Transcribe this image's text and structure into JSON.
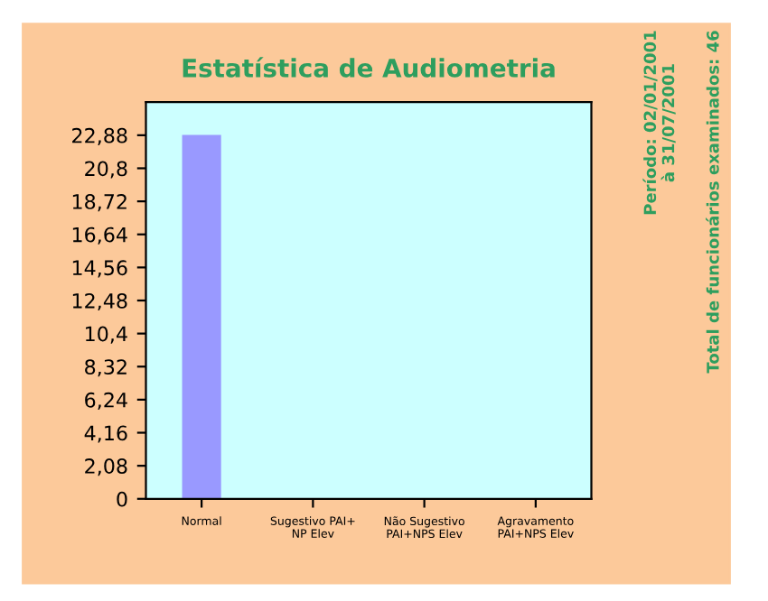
{
  "chart_data": {
    "type": "bar",
    "title": "Estatística de Audiometria",
    "categories": [
      "Normal",
      "Sugestivo PAI+\nNP Elev",
      "Não Sugestivo\nPAI+NPS Elev",
      "Agravamento\nPAI+NPS Elev"
    ],
    "values": [
      22.9,
      0,
      0,
      0
    ],
    "color": "#9999ff",
    "ylim": [
      0,
      24.96
    ],
    "yticks": [
      {
        "value": 0,
        "label": "0"
      },
      {
        "value": 2.08,
        "label": "2,08"
      },
      {
        "value": 4.16,
        "label": "4,16"
      },
      {
        "value": 6.24,
        "label": "6,24"
      },
      {
        "value": 8.32,
        "label": "8,32"
      },
      {
        "value": 10.4,
        "label": "10,4"
      },
      {
        "value": 12.48,
        "label": "12,48"
      },
      {
        "value": 14.56,
        "label": "14,56"
      },
      {
        "value": 16.64,
        "label": "16,64"
      },
      {
        "value": 18.72,
        "label": "18,72"
      },
      {
        "value": 20.8,
        "label": "20,8"
      },
      {
        "value": 22.88,
        "label": "22,88"
      }
    ],
    "annotations": [
      "Período: 02/01/2001\nà 31/07/2001",
      "Total de funcionários examinados: 46"
    ],
    "grid": false,
    "legend": false
  }
}
